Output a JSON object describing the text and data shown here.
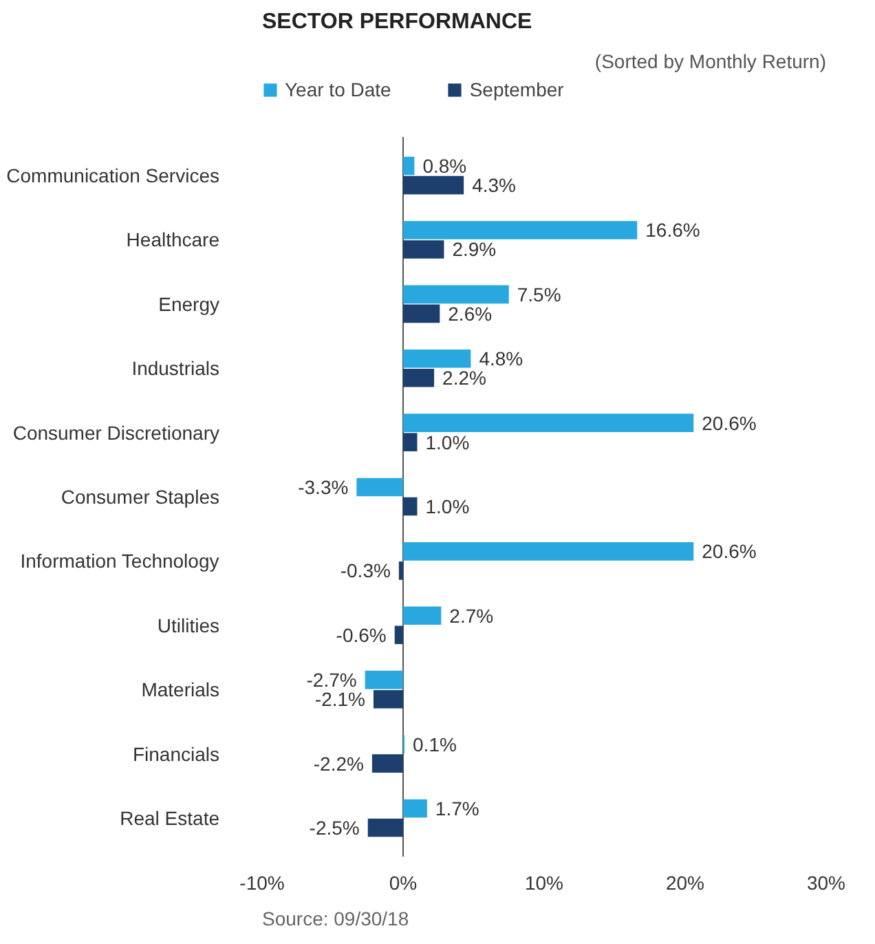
{
  "chart_data": {
    "type": "bar",
    "orientation": "horizontal",
    "title": "SECTOR PERFORMANCE",
    "subtitle": "(Sorted by Monthly Return)",
    "categories": [
      "Communication Services",
      "Healthcare",
      "Energy",
      "Industrials",
      "Consumer Discretionary",
      "Consumer Staples",
      "Information Technology",
      "Utilities",
      "Materials",
      "Financials",
      "Real Estate"
    ],
    "series": [
      {
        "name": "Year to Date",
        "color": "#29a8e0",
        "values": [
          0.8,
          16.6,
          7.5,
          4.8,
          20.6,
          -3.3,
          20.6,
          2.7,
          -2.7,
          0.1,
          1.7
        ],
        "value_labels": [
          "0.8%",
          "16.6%",
          "7.5%",
          "4.8%",
          "20.6%",
          "-3.3%",
          "20.6%",
          "2.7%",
          "-2.7%",
          "0.1%",
          "1.7%"
        ]
      },
      {
        "name": "September",
        "color": "#1c3f6e",
        "values": [
          4.3,
          2.9,
          2.6,
          2.2,
          1.0,
          1.0,
          -0.3,
          -0.6,
          -2.1,
          -2.2,
          -2.5
        ],
        "value_labels": [
          "4.3%",
          "2.9%",
          "2.6%",
          "2.2%",
          "1.0%",
          "1.0%",
          "-0.3%",
          "-0.6%",
          "-2.1%",
          "-2.2%",
          "-2.5%"
        ]
      }
    ],
    "xlim": [
      -10,
      30
    ],
    "xticks": [
      {
        "value": -10,
        "label": "-10%"
      },
      {
        "value": 0,
        "label": "0%"
      },
      {
        "value": 10,
        "label": "10%"
      },
      {
        "value": 20,
        "label": "20%"
      },
      {
        "value": 30,
        "label": "30%"
      }
    ],
    "grid": false,
    "legend": "top left",
    "ref_lines": [
      {
        "axis": "x",
        "value": 0,
        "color": "#555555"
      }
    ],
    "annotations": [
      "Source: 09/30/18"
    ]
  }
}
